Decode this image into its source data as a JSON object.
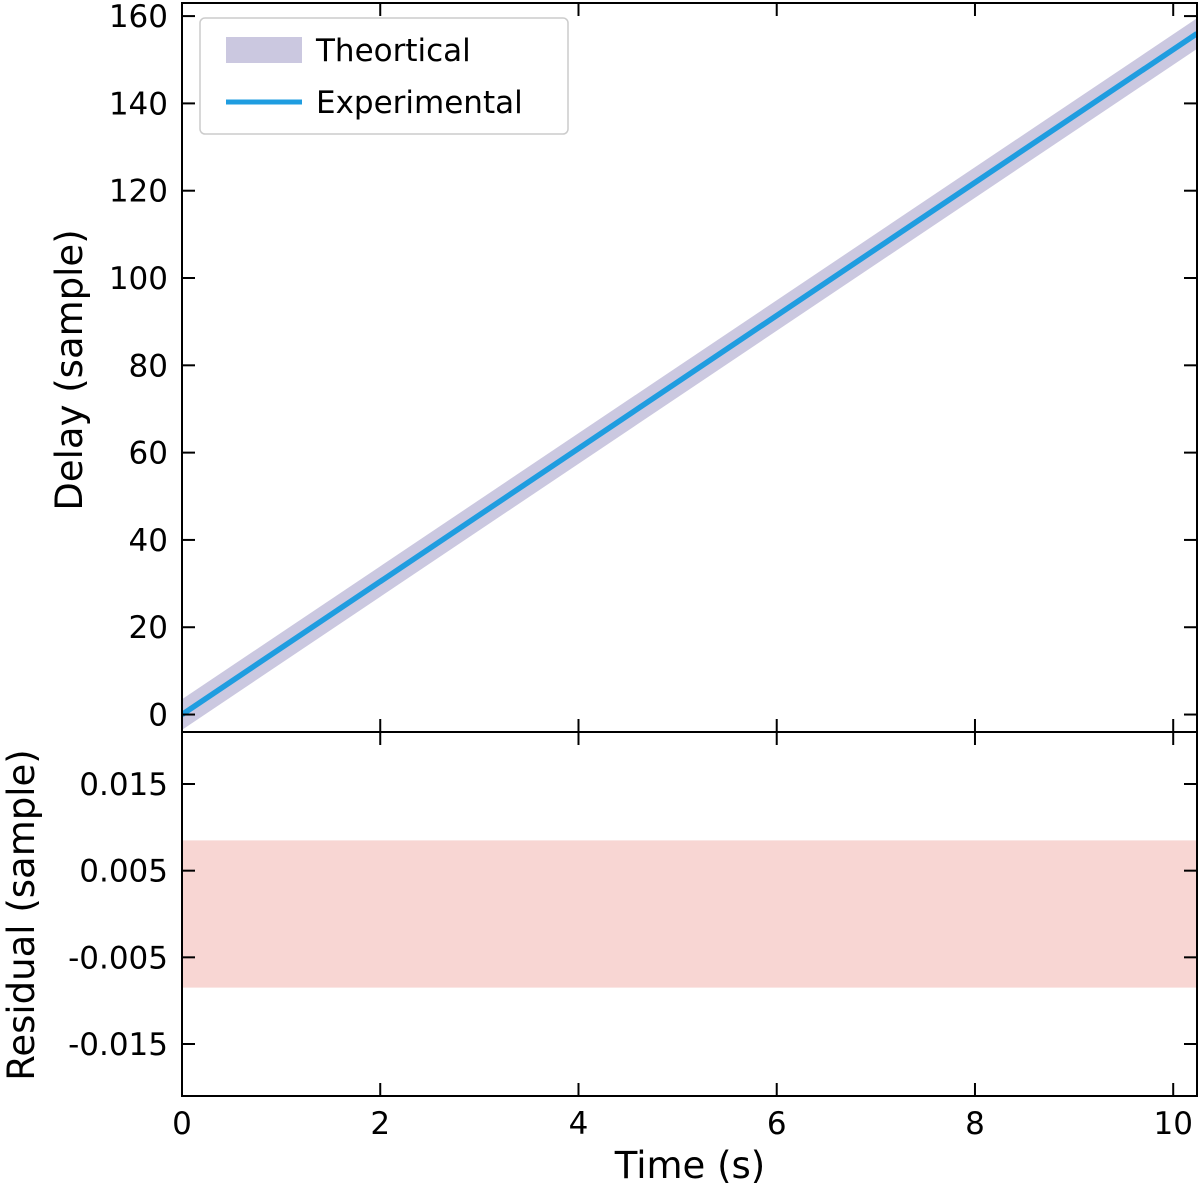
{
  "chart_data": [
    {
      "type": "line",
      "panel": "top",
      "xlabel": "",
      "ylabel": "Delay (sample)",
      "xlim": [
        0,
        10.24
      ],
      "ylim": [
        -4,
        163
      ],
      "x_ticks": [
        0,
        2,
        4,
        6,
        8,
        10
      ],
      "y_ticks": [
        0,
        20,
        40,
        60,
        80,
        100,
        120,
        140,
        160
      ],
      "y_tick_labels": [
        "0",
        "20",
        "40",
        "60",
        "80",
        "100",
        "120",
        "140",
        "160"
      ],
      "grid": false,
      "legend_position": "upper-left",
      "series": [
        {
          "name": "Theortical",
          "kind": "band",
          "color": "#cbc8e0",
          "x": [
            0,
            10.24
          ],
          "y_low": [
            -3.5,
            152.5
          ],
          "y_high": [
            3.5,
            159.5
          ]
        },
        {
          "name": "Experimental",
          "kind": "line",
          "color": "#1f9de0",
          "x": [
            0,
            10.24
          ],
          "y": [
            0,
            156
          ]
        }
      ]
    },
    {
      "type": "area",
      "panel": "bottom",
      "xlabel": "Time (s)",
      "ylabel": "Residual (sample)",
      "xlim": [
        0,
        10.24
      ],
      "ylim": [
        -0.021,
        0.021
      ],
      "x_ticks": [
        0,
        2,
        4,
        6,
        8,
        10
      ],
      "x_tick_labels": [
        "0",
        "2",
        "4",
        "6",
        "8",
        "10"
      ],
      "y_ticks": [
        0.015,
        0.005,
        -0.005,
        -0.015
      ],
      "y_tick_labels": [
        "0.015",
        "0.005",
        "-0.005",
        "-0.015"
      ],
      "grid": false,
      "series": [
        {
          "kind": "band",
          "color": "#f8d6d3",
          "x": [
            0,
            10.24
          ],
          "y_low": [
            -0.0085,
            -0.0085
          ],
          "y_high": [
            0.0085,
            0.0085
          ]
        }
      ]
    }
  ]
}
